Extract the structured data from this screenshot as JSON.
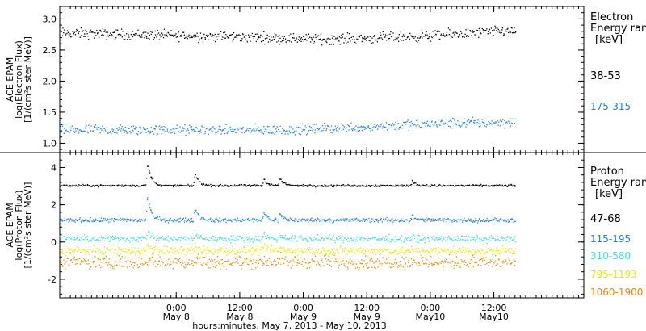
{
  "chart_data": [
    {
      "type": "scatter",
      "ylabel": [
        "ACE EPAM",
        "log(Electron Flux)",
        "[1/(cm²s ster MeV)]"
      ],
      "ylim": [
        0.85,
        3.2
      ],
      "yticks": [
        1.0,
        1.5,
        2.0,
        2.5,
        3.0
      ],
      "ytick_labels": [
        "1.0",
        "1.5",
        "2.0",
        "2.5",
        "3.0"
      ],
      "legend_title": [
        "Electron",
        "Energy range",
        "[keV]"
      ],
      "series": [
        {
          "name": "38-53",
          "color": "#000000",
          "base": 2.73,
          "spread": 0.07,
          "trend": [
            [
              0,
              2.78
            ],
            [
              0.38,
              2.72
            ],
            [
              0.58,
              2.68
            ],
            [
              0.78,
              2.72
            ],
            [
              0.95,
              2.8
            ],
            [
              1,
              2.82
            ]
          ]
        },
        {
          "name": "175-315",
          "color": "#1e7fd6",
          "base": 1.25,
          "spread": 0.07,
          "trend": [
            [
              0,
              1.22
            ],
            [
              0.5,
              1.22
            ],
            [
              0.85,
              1.33
            ],
            [
              1,
              1.35
            ]
          ]
        }
      ]
    },
    {
      "type": "scatter",
      "ylabel": [
        "ACE EPAM",
        "log(Proton Flux)",
        "[1/(cm²s ster MeV)]"
      ],
      "ylim": [
        -3.0,
        4.8
      ],
      "yticks": [
        -2,
        0,
        2,
        4
      ],
      "ytick_labels": [
        "-2",
        "0",
        "2",
        "4"
      ],
      "legend_title": [
        "Proton",
        "Energy range",
        "[keV]"
      ],
      "xlim_hours": [
        0,
        99
      ],
      "data_end_hour": 86,
      "xticks_hours": [
        22,
        34,
        46,
        58,
        70,
        82
      ],
      "xtick_labels": [
        [
          "0:00",
          "May 8"
        ],
        [
          "12:00",
          "May 8"
        ],
        [
          "0:00",
          "May 9"
        ],
        [
          "12:00",
          "May 9"
        ],
        [
          "0:00",
          "May10"
        ],
        [
          "12:00",
          "May10"
        ]
      ],
      "xlabel": "hours:minutes, May  7, 2013 - May 10, 2013",
      "series": [
        {
          "name": "47-68",
          "color": "#000000",
          "base": 3.05,
          "spread": 0.05
        },
        {
          "name": "115-195",
          "color": "#1e7fd6",
          "base": 1.2,
          "spread": 0.1
        },
        {
          "name": "310-580",
          "color": "#3fe0d0",
          "base": 0.2,
          "spread": 0.15
        },
        {
          "name": "795-1193",
          "color": "#e6e600",
          "base": -0.45,
          "spread": 0.2
        },
        {
          "name": "1060-1900",
          "color": "#e68a00",
          "base": -1.05,
          "spread": 0.3
        }
      ],
      "spikes": [
        {
          "hour": 16.5,
          "heights": [
            1.25,
            1.25,
            0.45,
            0.3,
            0.2
          ]
        },
        {
          "hour": 25.5,
          "heights": [
            0.65,
            0.65,
            0.3,
            0.2,
            0.15
          ]
        },
        {
          "hour": 38.5,
          "heights": [
            0.35,
            0.4,
            0.25,
            0.15,
            0.1
          ]
        },
        {
          "hour": 41.5,
          "heights": [
            0.4,
            0.35,
            0.2,
            0.15,
            0.1
          ]
        },
        {
          "hour": 66.5,
          "heights": [
            0.25,
            0.2,
            0.1,
            0.05,
            0.05
          ]
        }
      ]
    }
  ]
}
